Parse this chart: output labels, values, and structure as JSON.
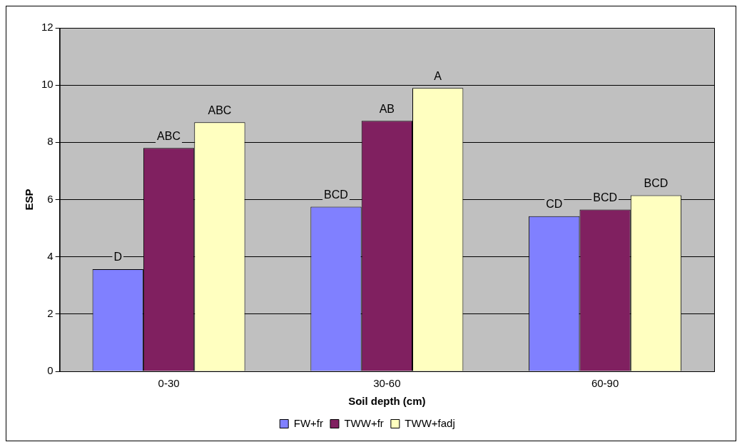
{
  "chart_data": {
    "type": "bar",
    "xlabel": "Soil depth (cm)",
    "ylabel": "ESP",
    "categories": [
      "0-30",
      "30-60",
      "60-90"
    ],
    "series": [
      {
        "name": "FW+fr",
        "color": "#8080ff",
        "values": [
          3.57,
          5.75,
          5.42
        ],
        "value_labels": [
          "D",
          "BCD",
          "CD"
        ]
      },
      {
        "name": "TWW+fr",
        "color": "#802060",
        "values": [
          7.8,
          8.75,
          5.65
        ],
        "value_labels": [
          "ABC",
          "AB",
          "BCD"
        ]
      },
      {
        "name": "TWW+fadj",
        "color": "#ffffc0",
        "values": [
          8.7,
          9.9,
          6.15
        ],
        "value_labels": [
          "ABC",
          "A",
          "BCD"
        ]
      }
    ],
    "ylim": [
      0,
      12
    ],
    "yticks": [
      0,
      2,
      4,
      6,
      8,
      10,
      12
    ],
    "grid": "y",
    "legend": "bottom"
  }
}
